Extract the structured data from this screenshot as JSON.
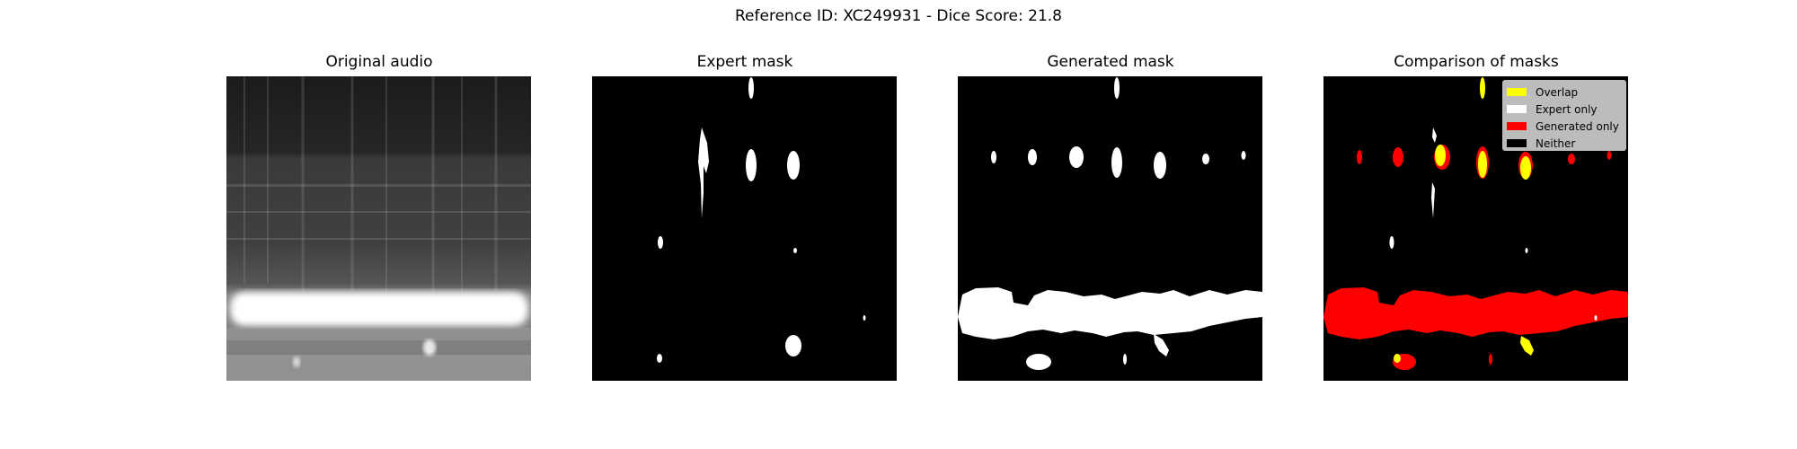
{
  "figure": {
    "suptitle": "Reference ID: XC249931 - Dice Score: 21.8"
  },
  "chart_data": [
    {
      "type": "heatmap",
      "title": "Original audio",
      "colormap": "grayscale spectrogram"
    },
    {
      "type": "heatmap",
      "title": "Expert mask",
      "colormap": "binary (white = mask)"
    },
    {
      "type": "heatmap",
      "title": "Generated mask",
      "colormap": "binary (white = mask)"
    },
    {
      "type": "heatmap",
      "title": "Comparison of masks",
      "legend_position": "top-right",
      "legend": [
        {
          "label": "Overlap",
          "color": "#ffff00"
        },
        {
          "label": "Expert only",
          "color": "#ffffff"
        },
        {
          "label": "Generated only",
          "color": "#ff0000"
        },
        {
          "label": "Neither",
          "color": "#000000"
        }
      ]
    }
  ]
}
